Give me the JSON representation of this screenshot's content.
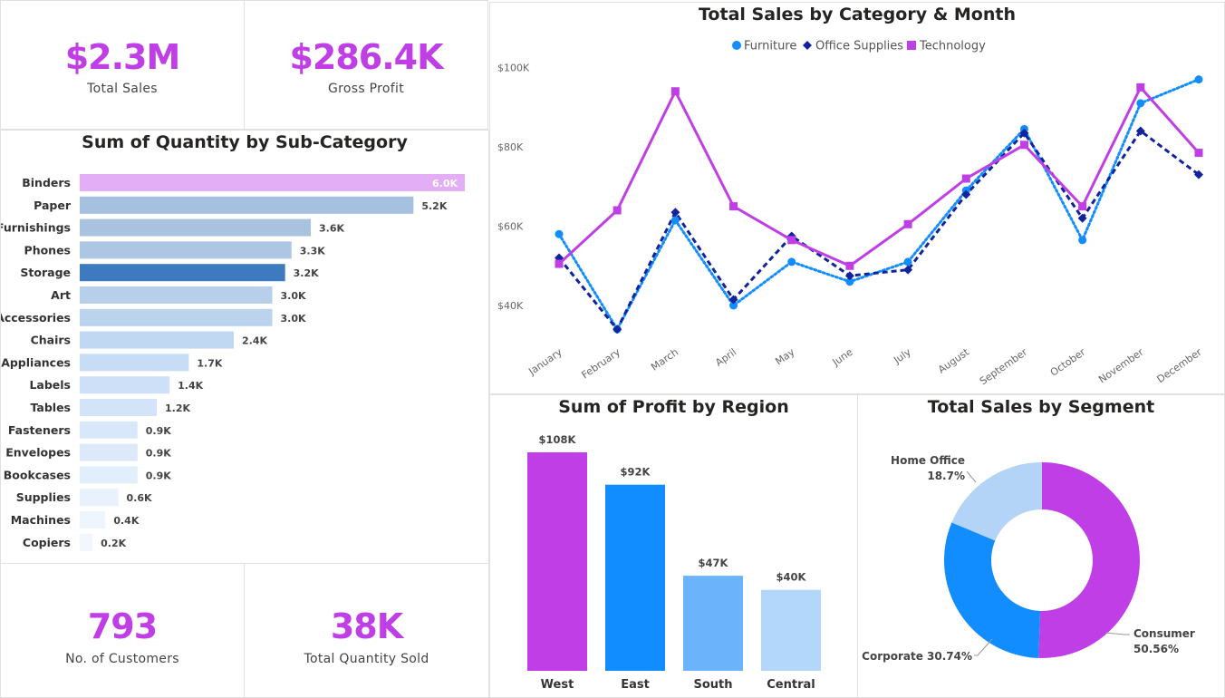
{
  "kpis": {
    "total_sales": {
      "value": "$2.3M",
      "label": "Total Sales"
    },
    "gross_profit": {
      "value": "$286.4K",
      "label": "Gross Profit"
    },
    "customers": {
      "value": "793",
      "label": "No. of Customers"
    },
    "quantity": {
      "value": "38K",
      "label": "Total Quantity Sold"
    }
  },
  "colors": {
    "purple": "#c03ee6",
    "furniture": "#118dff",
    "office_supplies": "#12239e",
    "technology": "#c03ee6",
    "highlight_bar": "#e3aef5",
    "storage_bar": "#3d7abf"
  },
  "chart_data": [
    {
      "id": "subcategory",
      "type": "bar",
      "orientation": "horizontal",
      "title": "Sum of Quantity by Sub-Category",
      "categories": [
        "Binders",
        "Paper",
        "Furnishings",
        "Phones",
        "Storage",
        "Art",
        "Accessories",
        "Chairs",
        "Appliances",
        "Labels",
        "Tables",
        "Fasteners",
        "Envelopes",
        "Bookcases",
        "Supplies",
        "Machines",
        "Copiers"
      ],
      "values": [
        6.0,
        5.2,
        3.6,
        3.3,
        3.2,
        3.0,
        3.0,
        2.4,
        1.7,
        1.4,
        1.2,
        0.9,
        0.9,
        0.9,
        0.6,
        0.4,
        0.2
      ],
      "labels": [
        "6.0K",
        "5.2K",
        "3.6K",
        "3.3K",
        "3.2K",
        "3.0K",
        "3.0K",
        "2.4K",
        "1.7K",
        "1.4K",
        "1.2K",
        "0.9K",
        "0.9K",
        "0.9K",
        "0.6K",
        "0.4K",
        "0.2K"
      ],
      "colors": [
        "#e3aef5",
        "#a6c0df",
        "#a9c2e0",
        "#adc6e3",
        "#3d7abf",
        "#b7cfeb",
        "#bcd3ee",
        "#c1d8f3",
        "#c7dcf5",
        "#cde0f7",
        "#d3e4f8",
        "#d8e8fa",
        "#dce9fa",
        "#e1eefb",
        "#e8f1fc",
        "#eef5fd",
        "#f2f7fd"
      ],
      "xlim": [
        0,
        6.0
      ]
    },
    {
      "id": "monthly",
      "type": "line",
      "title": "Total Sales by Category & Month",
      "x": [
        "January",
        "February",
        "March",
        "April",
        "May",
        "June",
        "July",
        "August",
        "September",
        "October",
        "November",
        "December"
      ],
      "ylim": [
        30000,
        100000
      ],
      "yticks": [
        40000,
        60000,
        80000,
        100000
      ],
      "ytick_labels": [
        "$40K",
        "$60K",
        "$80K",
        "$100K"
      ],
      "legend_position": "top",
      "series": [
        {
          "name": "Furniture",
          "marker": "circle",
          "style": "dotted",
          "color": "#118dff",
          "values": [
            58000,
            34000,
            61500,
            40000,
            51000,
            46000,
            51000,
            69000,
            84500,
            56500,
            91000,
            97000
          ]
        },
        {
          "name": "Office Supplies",
          "marker": "diamond",
          "style": "dashed",
          "color": "#12239e",
          "values": [
            52000,
            34000,
            63500,
            41500,
            57500,
            47500,
            49000,
            68000,
            83500,
            62000,
            84000,
            73000
          ]
        },
        {
          "name": "Technology",
          "marker": "square",
          "style": "solid",
          "color": "#c03ee6",
          "values": [
            50500,
            64000,
            94000,
            65000,
            56500,
            50000,
            60500,
            72000,
            80500,
            65000,
            95000,
            78500
          ]
        }
      ]
    },
    {
      "id": "region",
      "type": "bar",
      "title": "Sum of Profit by Region",
      "categories": [
        "West",
        "East",
        "South",
        "Central"
      ],
      "values": [
        108000,
        92000,
        47000,
        40000
      ],
      "labels": [
        "$108K",
        "$92K",
        "$47K",
        "$40K"
      ],
      "colors": [
        "#c03ee6",
        "#118dff",
        "#6bb3fa",
        "#b3d7fb"
      ],
      "ylim": [
        0,
        108000
      ]
    },
    {
      "id": "segment",
      "type": "pie",
      "title": "Total Sales by Segment",
      "donut": true,
      "categories": [
        "Consumer",
        "Corporate",
        "Home Office"
      ],
      "values": [
        50.56,
        30.74,
        18.7
      ],
      "labels": [
        "50.56%",
        "30.74%",
        "18.7%"
      ],
      "colors": [
        "#c03ee6",
        "#118dff",
        "#b3d4f7"
      ]
    }
  ]
}
